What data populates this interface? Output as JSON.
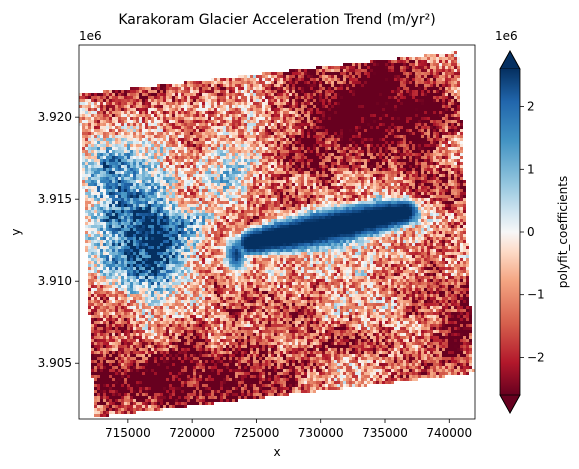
{
  "chart_data": {
    "type": "heatmap",
    "title": "Karakoram Glacier Acceleration Trend (m/yr²)",
    "xlabel": "x",
    "ylabel": "y",
    "x_offset_text": "",
    "y_offset_text": "1e6",
    "xlim": [
      711200,
      742000
    ],
    "ylim": [
      3901600,
      3924400
    ],
    "x_ticks": [
      715000,
      720000,
      725000,
      730000,
      735000,
      740000
    ],
    "x_tick_labels": [
      "715000",
      "720000",
      "725000",
      "730000",
      "735000",
      "740000"
    ],
    "y_ticks": [
      3.905,
      3.91,
      3.915,
      3.92
    ],
    "y_tick_labels": [
      "3.905",
      "3.910",
      "3.915",
      "3.920"
    ],
    "grid": false,
    "colormap": "RdBu",
    "colormap_low_color": "#67001f",
    "colormap_high_color": "#053061",
    "colorbar": {
      "label": "polyfit_coefficients",
      "offset_text": "1e6",
      "vmin": -2.6,
      "vmax": 2.6,
      "ticks": [
        2,
        1,
        0,
        -1,
        -2
      ],
      "tick_labels": [
        "2",
        "1",
        "0",
        "−1",
        "−2"
      ],
      "extend": "both"
    },
    "data_footprint_corners": [
      {
        "x": 711200,
        "y": 3921400
      },
      {
        "x": 740700,
        "y": 3924000
      },
      {
        "x": 741900,
        "y": 3904400
      },
      {
        "x": 712400,
        "y": 3901700
      }
    ],
    "value_description": "Glacier tongue and western basin strongly positive (~+2.5e6); surrounding terrain mostly strongly negative (~-2.5e6)"
  }
}
